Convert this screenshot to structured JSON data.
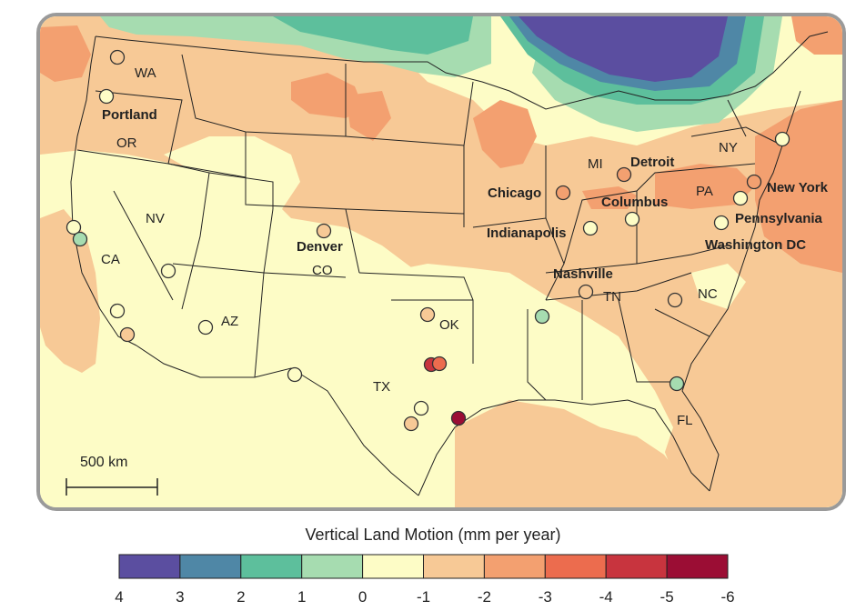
{
  "map": {
    "legend_title": "Vertical Land Motion (mm per year)",
    "scale_bar_label": "500 km",
    "state_labels": [
      "WA",
      "OR",
      "NV",
      "CA",
      "AZ",
      "CO",
      "TX",
      "OK",
      "TN",
      "NC",
      "FL",
      "MI",
      "NY",
      "PA"
    ],
    "city_labels": [
      "Portland",
      "Denver",
      "Chicago",
      "Detroit",
      "Columbus",
      "Indianapolis",
      "Nashville",
      "New York",
      "Pennsylvania",
      "Washington DC"
    ],
    "colorbar": {
      "ticks": [
        "4",
        "3",
        "2",
        "1",
        "0",
        "-1",
        "-2",
        "-3",
        "-4",
        "-5",
        "-6"
      ],
      "colors": [
        "#5b4ea0",
        "#4f87a6",
        "#5dbf9c",
        "#a6dcb0",
        "#fdfcc6",
        "#f7c996",
        "#f3a070",
        "#ec6c4e",
        "#c8343e",
        "#9b0d34"
      ]
    },
    "station_colors": {
      "uplift_0_1": "#a6dcb0",
      "stable": "#fdfcc6",
      "sub_1_2": "#f7c996",
      "sub_2_3": "#f3a070",
      "sub_3_4": "#ec6c4e",
      "sub_4_5": "#c8343e",
      "sub_5_6": "#9b0d34"
    }
  }
}
